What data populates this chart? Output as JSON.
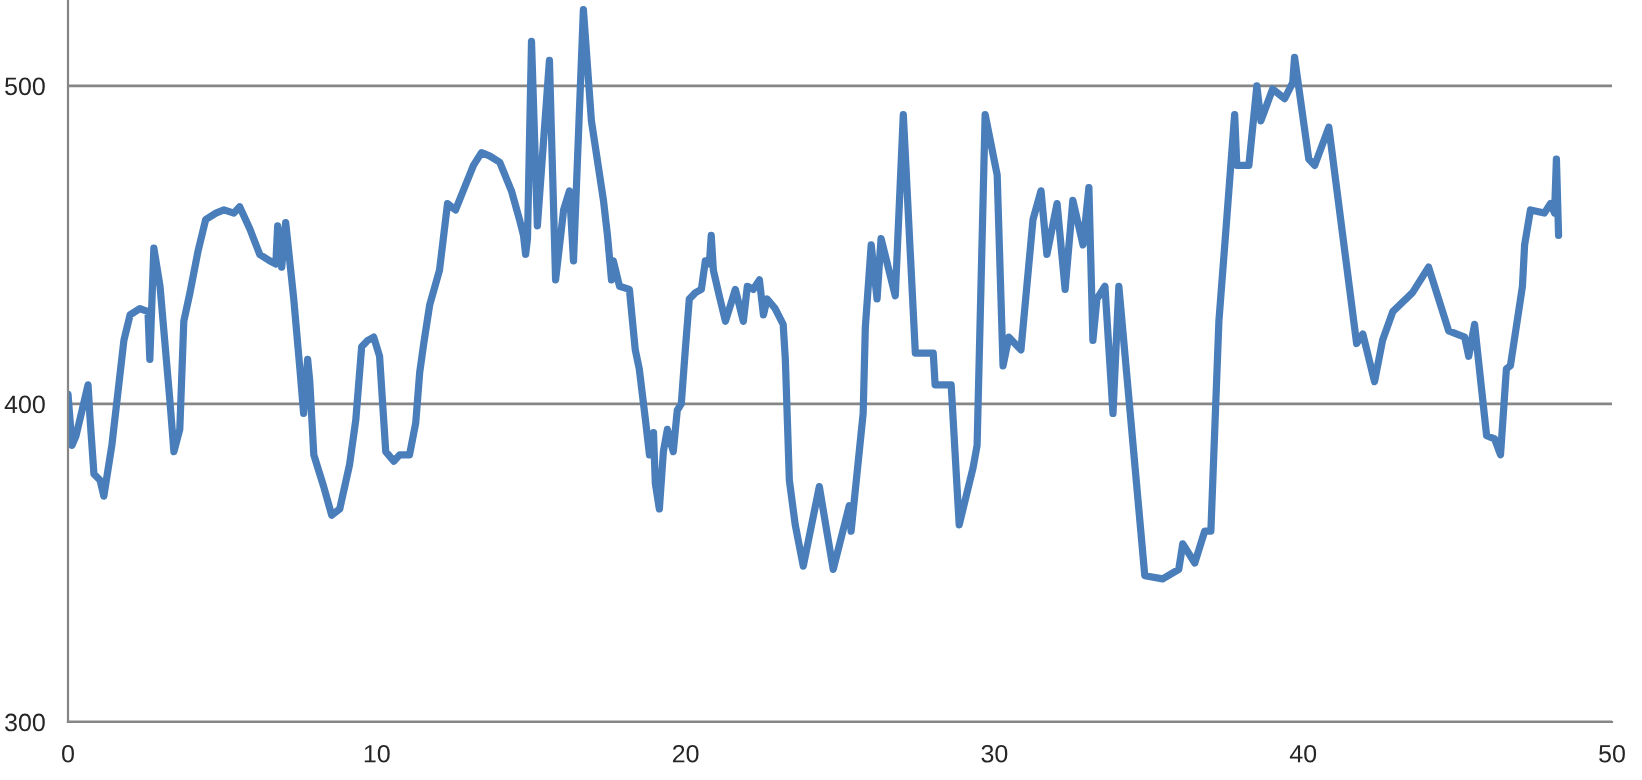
{
  "chart_data": {
    "type": "line",
    "x": [
      0.0,
      0.13,
      0.26,
      0.65,
      0.71,
      0.84,
      1.04,
      1.16,
      1.42,
      1.55,
      1.81,
      2.01,
      2.33,
      2.59,
      2.65,
      2.78,
      2.98,
      3.3,
      3.43,
      3.62,
      3.75,
      3.95,
      4.21,
      4.46,
      4.79,
      5.05,
      5.37,
      5.56,
      5.89,
      6.21,
      6.53,
      6.73,
      6.79,
      6.92,
      7.05,
      7.18,
      7.31,
      7.51,
      7.63,
      7.76,
      7.83,
      7.96,
      8.28,
      8.54,
      8.8,
      9.12,
      9.32,
      9.51,
      9.71,
      9.9,
      10.09,
      10.29,
      10.55,
      10.74,
      11.06,
      11.26,
      11.39,
      11.52,
      11.71,
      12.03,
      12.29,
      12.55,
      12.88,
      13.13,
      13.39,
      13.65,
      13.98,
      14.36,
      14.62,
      14.75,
      14.82,
      14.88,
      15.01,
      15.2,
      15.59,
      15.79,
      16.05,
      16.24,
      16.37,
      16.69,
      16.95,
      17.34,
      17.47,
      17.6,
      17.66,
      17.86,
      18.18,
      18.37,
      18.5,
      18.7,
      18.83,
      18.96,
      19.02,
      19.15,
      19.28,
      19.41,
      19.6,
      19.73,
      19.86,
      19.99,
      20.12,
      20.32,
      20.51,
      20.64,
      20.77,
      20.83,
      20.9,
      21.09,
      21.29,
      21.42,
      21.61,
      21.74,
      21.87,
      22.0,
      22.19,
      22.39,
      22.52,
      22.64,
      22.9,
      23.16,
      23.23,
      23.36,
      23.55,
      23.81,
      24.33,
      24.78,
      25.3,
      25.36,
      25.75,
      25.82,
      26.01,
      26.2,
      26.33,
      26.79,
      27.05,
      27.44,
      28.02,
      28.08,
      28.6,
      28.86,
      29.31,
      29.44,
      29.7,
      30.09,
      30.28,
      30.47,
      30.86,
      31.25,
      31.51,
      31.7,
      32.03,
      32.29,
      32.54,
      32.87,
      33.06,
      33.19,
      33.32,
      33.58,
      33.84,
      34.03,
      34.87,
      35.45,
      35.97,
      36.1,
      36.49,
      36.81,
      37.01,
      37.27,
      37.46,
      37.78,
      37.85,
      38.24,
      38.5,
      38.63,
      39.01,
      39.4,
      39.66,
      39.72,
      39.85,
      40.18,
      40.37,
      40.83,
      41.73,
      41.93,
      42.31,
      42.57,
      42.9,
      43.54,
      44.06,
      44.71,
      45.23,
      45.36,
      45.55,
      45.94,
      46.2,
      46.39,
      46.58,
      46.71,
      47.1,
      47.17,
      47.36,
      47.81,
      48.01,
      48.14,
      48.2,
      48.27
    ],
    "series": [
      {
        "color": "#4a7ebb",
        "values": [
          403,
          387,
          390,
          406,
          396,
          378,
          376,
          371,
          387,
          398,
          420,
          428,
          430,
          429,
          414,
          449,
          437,
          401,
          385,
          392,
          426,
          435,
          448,
          458,
          460,
          461,
          460,
          462,
          455,
          447,
          445,
          444,
          456,
          443,
          457,
          445,
          433,
          411,
          397,
          414,
          407,
          384,
          374,
          365,
          367,
          381,
          395,
          418,
          420,
          421,
          415,
          385,
          382,
          384,
          384,
          394,
          410,
          419,
          431,
          442,
          463,
          461,
          469,
          475,
          479,
          478,
          476,
          467,
          458,
          453,
          447,
          452,
          514,
          456,
          508,
          439,
          461,
          467,
          445,
          524,
          489,
          464,
          453,
          439,
          445,
          437,
          436,
          417,
          411,
          395,
          384,
          391,
          375,
          367,
          385,
          392,
          385,
          398,
          400,
          417,
          433,
          435,
          436,
          445,
          444,
          453,
          442,
          434,
          426,
          430,
          436,
          431,
          426,
          437,
          436,
          439,
          428,
          433,
          430,
          425,
          414,
          376,
          362,
          349,
          374,
          348,
          368,
          360,
          397,
          424,
          450,
          433,
          452,
          434,
          491,
          416,
          416,
          406,
          406,
          362,
          380,
          387,
          491,
          472,
          412,
          421,
          417,
          458,
          467,
          447,
          463,
          436,
          464,
          450,
          468,
          420,
          433,
          437,
          397,
          437,
          346,
          345,
          348,
          356,
          350,
          360,
          360,
          426,
          450,
          491,
          475,
          475,
          500,
          489,
          499,
          496,
          501,
          509,
          500,
          477,
          475,
          487,
          419,
          422,
          407,
          420,
          429,
          435,
          443,
          423,
          421,
          415,
          425,
          390,
          389,
          384,
          411,
          412,
          437,
          450,
          461,
          460,
          463,
          460,
          477,
          453
        ]
      }
    ],
    "xlim": [
      0,
      50
    ],
    "xticks": [
      0,
      10,
      20,
      30,
      40,
      50
    ],
    "ylim": [
      300,
      527
    ],
    "yticks": [
      300,
      400,
      500
    ],
    "grid": "y",
    "marker": "none",
    "line_style": "solid"
  }
}
